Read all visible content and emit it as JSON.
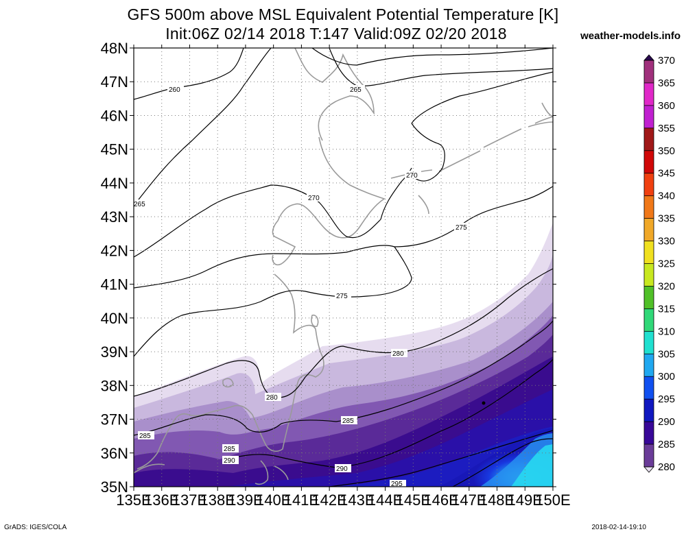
{
  "title": {
    "line1": "GFS 500m above MSL Equivalent Potential Temperature [K]",
    "line2": "Init:06Z 02/14 2018 T:147 Valid:09Z 02/20 2018"
  },
  "site": "weather-models.info",
  "credit_left": "GrADS: IGES/COLA",
  "timestamp": "2018-02-14-19:10",
  "map": {
    "lat_labels": [
      "48N",
      "47N",
      "46N",
      "45N",
      "44N",
      "43N",
      "42N",
      "41N",
      "40N",
      "39N",
      "38N",
      "37N",
      "36N",
      "35N"
    ],
    "lon_labels": [
      "135E",
      "136E",
      "137E",
      "138E",
      "139E",
      "140E",
      "141E",
      "142E",
      "143E",
      "144E",
      "145E",
      "146E",
      "147E",
      "148E",
      "149E",
      "150E"
    ],
    "lat_range": [
      35,
      48
    ],
    "lon_range": [
      135,
      150
    ],
    "contour_labels": [
      "260",
      "265",
      "265",
      "270",
      "270",
      "275",
      "275",
      "280",
      "280",
      "285",
      "285",
      "285",
      "290",
      "290",
      "295"
    ]
  },
  "colorbar": {
    "labels": [
      "370",
      "365",
      "360",
      "355",
      "350",
      "345",
      "340",
      "335",
      "330",
      "325",
      "320",
      "315",
      "310",
      "305",
      "300",
      "295",
      "290",
      "285",
      "280"
    ],
    "colors": [
      "#2a0a50",
      "#a0307c",
      "#e028c8",
      "#c020d0",
      "#a01818",
      "#d00808",
      "#f04010",
      "#f07818",
      "#f0a828",
      "#f0e020",
      "#c8e820",
      "#50c028",
      "#30d878",
      "#20e0d0",
      "#20a8f0",
      "#1050f0",
      "#1018c0",
      "#380898",
      "#6a3c98",
      "#a88cc4",
      "#e8e0f0"
    ],
    "range": [
      280,
      370
    ],
    "interval": 5
  }
}
